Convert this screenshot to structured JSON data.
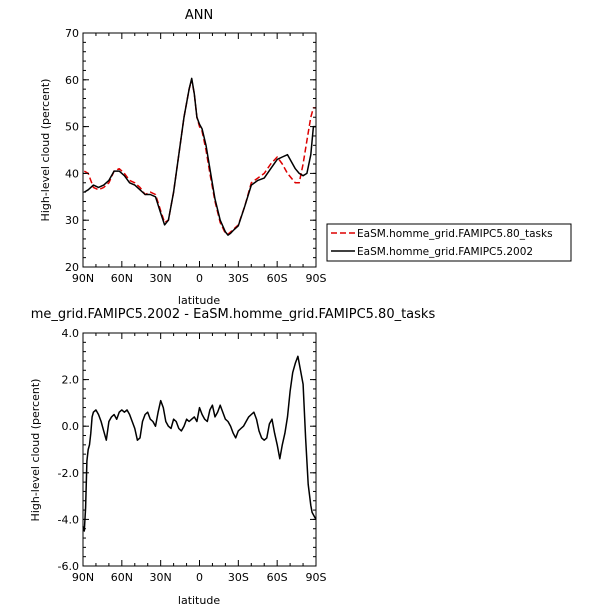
{
  "chart_data": [
    {
      "type": "line",
      "title": "ANN",
      "xlabel": "latitude",
      "ylabel": "High-level cloud (percent)",
      "xlim": [
        90,
        -90
      ],
      "ylim": [
        20,
        70
      ],
      "xticks": [
        90,
        60,
        30,
        0,
        -30,
        -60,
        -90
      ],
      "xtick_labels": [
        "90N",
        "60N",
        "30N",
        "0",
        "30S",
        "60S",
        "90S"
      ],
      "yticks": [
        20,
        30,
        40,
        50,
        60,
        70
      ],
      "ytick_labels": [
        "20",
        "30",
        "40",
        "50",
        "60",
        "70"
      ],
      "legend": "right",
      "series": [
        {
          "name": "EaSM.homme_grid.FAMIPC5.80_tasks",
          "color": "#dd0000",
          "dash": "dashed",
          "x": [
            89,
            86,
            82,
            78,
            74,
            70,
            66,
            62,
            58,
            54,
            50,
            46,
            42,
            38,
            34,
            30,
            27,
            24,
            20,
            16,
            12,
            8,
            6,
            4,
            2,
            0,
            -2,
            -5,
            -8,
            -12,
            -16,
            -20,
            -22,
            -24,
            -26,
            -30,
            -35,
            -40,
            -45,
            -50,
            -55,
            -60,
            -64,
            -68,
            -71,
            -74,
            -77,
            -80,
            -83,
            -86,
            -88,
            -90
          ],
          "y": [
            40.5,
            40,
            37,
            36.5,
            37,
            38,
            40.5,
            41,
            40,
            38.5,
            38,
            37,
            35.5,
            36,
            35.5,
            32,
            29.5,
            30,
            36,
            44,
            52,
            58,
            60,
            57,
            52,
            50,
            49,
            45,
            40,
            34,
            29.5,
            27.2,
            27,
            27.5,
            28,
            29,
            33,
            38,
            39,
            40,
            42,
            43.5,
            42,
            40,
            39,
            38,
            38,
            42,
            47,
            52,
            54,
            54
          ]
        },
        {
          "name": "EaSM.homme_grid.FAMIPC5.2002",
          "color": "#000000",
          "dash": "solid",
          "x": [
            89,
            86,
            82,
            78,
            74,
            70,
            66,
            62,
            58,
            54,
            50,
            46,
            42,
            38,
            34,
            30,
            27,
            24,
            20,
            16,
            12,
            8,
            6,
            4,
            2,
            0,
            -2,
            -5,
            -8,
            -12,
            -16,
            -20,
            -22,
            -24,
            -26,
            -30,
            -35,
            -40,
            -45,
            -50,
            -55,
            -60,
            -64,
            -68,
            -71,
            -74,
            -77,
            -80,
            -83,
            -86,
            -88,
            -90
          ],
          "y": [
            36,
            36.5,
            37.5,
            37,
            37.5,
            38.5,
            40.5,
            40.5,
            39.5,
            38,
            37.5,
            36.5,
            35.5,
            35.5,
            35,
            31.5,
            29,
            30,
            36,
            44,
            52,
            58,
            60.3,
            57,
            52,
            50.5,
            49.5,
            46,
            41,
            34.5,
            30,
            27.5,
            26.8,
            27.2,
            27.8,
            28.8,
            33,
            37.5,
            38.5,
            39,
            41,
            43,
            43.5,
            44,
            42.5,
            41,
            40,
            39.5,
            40,
            44,
            50,
            50
          ]
        }
      ]
    },
    {
      "type": "line",
      "title": "me_grid.FAMIPC5.2002 - EaSM.homme_grid.FAMIPC5.80_tasks",
      "xlabel": "latitude",
      "ylabel": "High-level cloud (percent)",
      "xlim": [
        90,
        -90
      ],
      "ylim": [
        -6,
        4
      ],
      "xticks": [
        90,
        60,
        30,
        0,
        -30,
        -60,
        -90
      ],
      "xtick_labels": [
        "90N",
        "60N",
        "30N",
        "0",
        "30S",
        "60S",
        "90S"
      ],
      "yticks": [
        -6,
        -4,
        -2,
        0,
        2,
        4
      ],
      "ytick_labels": [
        "-6.0",
        "-4.0",
        "-2.0",
        "0.0",
        "2.0",
        "4.0"
      ],
      "series": [
        {
          "color": "#000000",
          "dash": "solid",
          "x": [
            90,
            89,
            88,
            87,
            86,
            85,
            84,
            83,
            82,
            80,
            78,
            76,
            74,
            72,
            70,
            68,
            66,
            64,
            62,
            60,
            58,
            56,
            54,
            52,
            50,
            48,
            46,
            44,
            42,
            40,
            38,
            36,
            34,
            32,
            30,
            28,
            26,
            24,
            22,
            20,
            18,
            16,
            14,
            12,
            10,
            8,
            6,
            4,
            2,
            0,
            -2,
            -4,
            -6,
            -8,
            -10,
            -12,
            -14,
            -16,
            -18,
            -20,
            -22,
            -24,
            -26,
            -28,
            -30,
            -32,
            -34,
            -36,
            -38,
            -40,
            -42,
            -44,
            -46,
            -48,
            -50,
            -52,
            -54,
            -56,
            -58,
            -60,
            -62,
            -64,
            -66,
            -68,
            -70,
            -72,
            -74,
            -76,
            -78,
            -80,
            -82,
            -84,
            -86,
            -87,
            -88,
            -89,
            -90
          ],
          "y": [
            -4.3,
            -4.5,
            -3.5,
            -1.5,
            -1.0,
            -0.8,
            -0.3,
            0.4,
            0.6,
            0.7,
            0.5,
            0.2,
            -0.2,
            -0.6,
            0.2,
            0.4,
            0.5,
            0.3,
            0.6,
            0.7,
            0.6,
            0.7,
            0.5,
            0.2,
            -0.1,
            -0.6,
            -0.5,
            0.2,
            0.5,
            0.6,
            0.3,
            0.2,
            0.0,
            0.6,
            1.1,
            0.8,
            0.2,
            0.0,
            -0.1,
            0.3,
            0.2,
            -0.1,
            -0.2,
            0.0,
            0.3,
            0.2,
            0.3,
            0.4,
            0.2,
            0.8,
            0.5,
            0.3,
            0.2,
            0.7,
            0.9,
            0.4,
            0.6,
            0.9,
            0.6,
            0.3,
            0.2,
            0.0,
            -0.3,
            -0.5,
            -0.2,
            -0.1,
            0.0,
            0.2,
            0.4,
            0.5,
            0.6,
            0.3,
            -0.2,
            -0.5,
            -0.6,
            -0.5,
            0.1,
            0.3,
            -0.3,
            -0.8,
            -1.4,
            -0.8,
            -0.3,
            0.4,
            1.5,
            2.3,
            2.7,
            3.0,
            2.4,
            1.8,
            -0.5,
            -2.5,
            -3.4,
            -3.7,
            -3.8,
            -3.9,
            -4.0
          ]
        }
      ]
    }
  ]
}
